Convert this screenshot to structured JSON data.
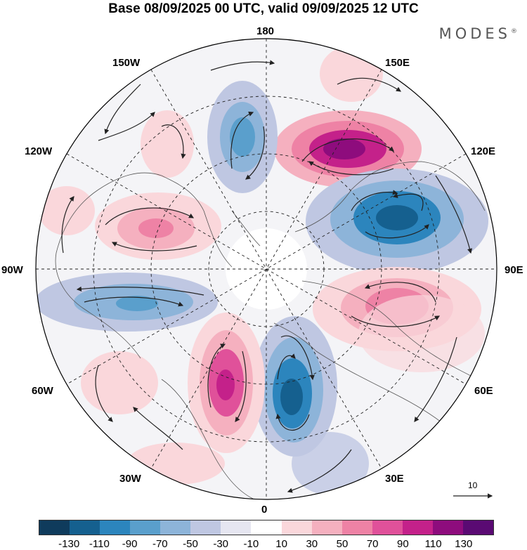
{
  "title": "Base 08/09/2025 00 UTC, valid 09/09/2025 12 UTC",
  "brand": "MODES",
  "brand_mark": "®",
  "longitude_labels": {
    "top": "180",
    "bottom": "0",
    "left": "90W",
    "right": "90E",
    "nw1": "150W",
    "nw2": "120W",
    "ne1": "150E",
    "ne2": "120E",
    "sw1": "60W",
    "sw2": "30W",
    "se1": "60E",
    "se2": "30E"
  },
  "reference_vector": "10",
  "colorbar": {
    "ticks": [
      "-130",
      "-110",
      "-90",
      "-70",
      "-50",
      "-30",
      "-10",
      "10",
      "30",
      "50",
      "70",
      "90",
      "110",
      "130"
    ],
    "colors": [
      "#0f3b5c",
      "#15608f",
      "#2c85bd",
      "#5a9fcc",
      "#8db4d9",
      "#bfc7e2",
      "#e6e6f1",
      "#ffffff",
      "#fad7db",
      "#f5b0bf",
      "#ee82a5",
      "#e0519a",
      "#c4218a",
      "#8e0c7d",
      "#5a0a73"
    ]
  },
  "anomalies": [
    {
      "name": "anomaly-ne-high",
      "value": 120
    },
    {
      "name": "anomaly-east-low",
      "value": -120
    },
    {
      "name": "anomaly-se-high",
      "value": 80
    },
    {
      "name": "anomaly-south-low",
      "value": -120
    },
    {
      "name": "anomaly-sw-high",
      "value": 110
    },
    {
      "name": "anomaly-west-low",
      "value": -60
    },
    {
      "name": "anomaly-w-high",
      "value": 50
    },
    {
      "name": "anomaly-nw-low",
      "value": -70
    },
    {
      "name": "anomaly-nnw-high",
      "value": 30
    },
    {
      "name": "anomaly-wnw-high",
      "value": 30
    },
    {
      "name": "anomaly-ssw-high",
      "value": 20
    }
  ]
}
